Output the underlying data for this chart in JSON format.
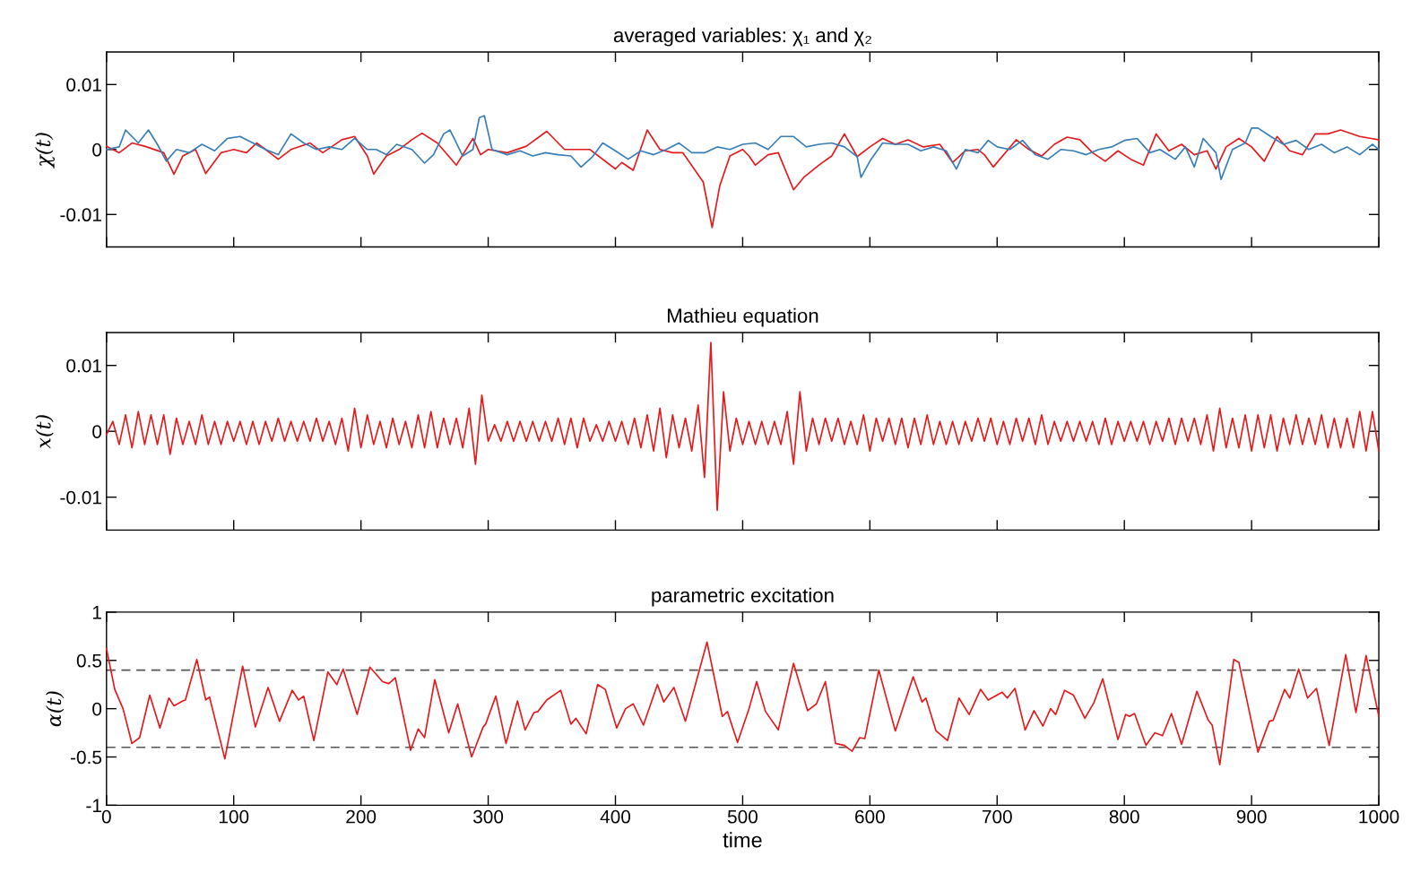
{
  "chart_data": [
    {
      "type": "line",
      "title": "averaged variables: χ₁ and χ₂",
      "ylabel": "χ(t)",
      "xlim": [
        0,
        1000
      ],
      "xticks": [
        0,
        100,
        200,
        300,
        400,
        500,
        600,
        700,
        800,
        900,
        1000
      ],
      "ylim": [
        -0.015,
        0.015
      ],
      "yticks": [
        -0.01,
        0,
        0.01
      ],
      "tick_labels": "y",
      "grid": false,
      "legend": false,
      "series": [
        {
          "color": "#e41a1c",
          "x": [
            0,
            10,
            20,
            30,
            45,
            53,
            60,
            70,
            78,
            90,
            100,
            110,
            118,
            125,
            135,
            145,
            160,
            170,
            185,
            195,
            205,
            210,
            220,
            230,
            240,
            248,
            260,
            275,
            288,
            294,
            300,
            315,
            330,
            346,
            360,
            380,
            400,
            405,
            414,
            425,
            435,
            445,
            453,
            469,
            476,
            482,
            490,
            500,
            505,
            510,
            520,
            528,
            540,
            548,
            560,
            570,
            580,
            590,
            600,
            610,
            620,
            630,
            642,
            655,
            665,
            675,
            685,
            690,
            697,
            715,
            725,
            735,
            745,
            755,
            765,
            775,
            785,
            795,
            805,
            815,
            825,
            835,
            845,
            855,
            865,
            872,
            880,
            890,
            900,
            910,
            920,
            930,
            940,
            950,
            960,
            970,
            985,
            1000
          ],
          "values": [
            0.0005,
            -0.0005,
            0.001,
            0.0005,
            -0.0005,
            -0.0038,
            -0.001,
            0.0,
            -0.0037,
            -0.0005,
            0.0,
            -0.0005,
            0.001,
            0.0,
            -0.0015,
            0.0,
            0.001,
            -0.0005,
            0.0015,
            0.002,
            -0.001,
            -0.0038,
            -0.001,
            0.0,
            0.0015,
            0.0025,
            0.001,
            -0.0024,
            0.0017,
            -0.0008,
            0.0,
            -0.0005,
            0.0005,
            0.0028,
            0.0,
            0.0,
            -0.003,
            -0.002,
            -0.0032,
            0.003,
            0.0,
            -0.0005,
            -0.0005,
            -0.005,
            -0.012,
            -0.0056,
            -0.001,
            0.0,
            -0.001,
            -0.0024,
            -0.0008,
            -0.0005,
            -0.0062,
            -0.0043,
            -0.0024,
            -0.001,
            0.0024,
            -0.0011,
            0.0004,
            0.0017,
            0.0008,
            0.0015,
            0.0004,
            0.0008,
            -0.002,
            -0.0002,
            0.0,
            -0.0008,
            -0.0027,
            0.0015,
            0.0,
            -0.001,
            0.0008,
            0.0019,
            0.0015,
            -0.0005,
            -0.0018,
            -0.0002,
            -0.0015,
            -0.0024,
            0.0024,
            -0.0002,
            0.0008,
            -0.0008,
            -0.0002,
            -0.003,
            0.0004,
            0.0017,
            0.0004,
            -0.0018,
            0.002,
            -0.0002,
            -0.0008,
            0.0024,
            0.0024,
            0.003,
            0.002,
            0.0015
          ]
        },
        {
          "color": "#377eb8",
          "x": [
            0,
            10,
            15,
            25,
            33,
            40,
            47,
            55,
            65,
            75,
            85,
            95,
            105,
            115,
            125,
            135,
            145,
            155,
            165,
            175,
            185,
            195,
            205,
            212,
            220,
            228,
            240,
            250,
            257,
            265,
            270,
            280,
            288,
            293,
            297,
            303,
            315,
            325,
            335,
            345,
            355,
            365,
            373,
            382,
            390,
            400,
            410,
            420,
            430,
            440,
            450,
            460,
            470,
            480,
            490,
            500,
            510,
            520,
            530,
            540,
            550,
            560,
            570,
            580,
            590,
            593,
            600,
            610,
            620,
            630,
            640,
            650,
            660,
            668,
            675,
            685,
            693,
            700,
            710,
            720,
            730,
            740,
            750,
            760,
            770,
            780,
            790,
            800,
            810,
            820,
            828,
            840,
            848,
            855,
            862,
            872,
            876,
            885,
            895,
            900,
            905,
            915,
            925,
            935,
            945,
            955,
            965,
            975,
            985,
            995,
            1000
          ],
          "values": [
            0.0,
            0.0004,
            0.003,
            0.001,
            0.003,
            0.0008,
            -0.0018,
            0.0,
            -0.0005,
            0.0008,
            -0.0002,
            0.0017,
            0.002,
            0.001,
            0.0,
            -0.0008,
            0.0024,
            0.001,
            0.0,
            0.0004,
            0.0,
            0.0017,
            0.0,
            0.0,
            -0.0008,
            0.0008,
            0.0,
            -0.0021,
            -0.0008,
            0.0024,
            0.003,
            -0.001,
            0.0,
            0.0049,
            0.0052,
            0.0,
            -0.0008,
            -0.0002,
            -0.001,
            -0.0005,
            -0.0008,
            -0.001,
            -0.0027,
            -0.0011,
            0.001,
            -0.0002,
            -0.0015,
            -0.0002,
            -0.0008,
            0.0,
            0.001,
            -0.0005,
            -0.0005,
            0.0004,
            0.0,
            0.0008,
            0.001,
            0.0,
            0.002,
            0.002,
            0.0004,
            0.0008,
            0.001,
            0.0004,
            -0.0011,
            -0.0043,
            -0.0018,
            0.001,
            0.0008,
            0.0008,
            -0.0002,
            0.0004,
            -0.0002,
            -0.003,
            0.0,
            -0.0005,
            0.0014,
            0.0004,
            0.0,
            0.0014,
            -0.0008,
            -0.0015,
            0.0,
            -0.0002,
            -0.0008,
            0.0,
            0.0004,
            0.0014,
            0.0017,
            -0.0005,
            0.0,
            -0.0015,
            0.0004,
            -0.0027,
            0.0017,
            -0.0005,
            -0.0046,
            0.0,
            0.001,
            0.0033,
            0.0033,
            0.002,
            0.0008,
            0.0014,
            0.0,
            0.0008,
            -0.0005,
            0.0004,
            -0.0008,
            0.0008,
            0.0
          ]
        }
      ]
    },
    {
      "type": "line",
      "title": "Mathieu equation",
      "ylabel": "x(t)",
      "xlim": [
        0,
        1000
      ],
      "xticks": [
        0,
        100,
        200,
        300,
        400,
        500,
        600,
        700,
        800,
        900,
        1000
      ],
      "ylim": [
        -0.015,
        0.015
      ],
      "yticks": [
        -0.01,
        0,
        0.01
      ],
      "tick_labels": "y",
      "grid": false,
      "legend": false,
      "series": [
        {
          "color": "#e41a1c",
          "x": [
            0,
            5,
            10,
            15,
            20,
            25,
            30,
            35,
            40,
            45,
            50,
            55,
            60,
            65,
            70,
            75,
            80,
            85,
            90,
            95,
            100,
            105,
            110,
            115,
            120,
            125,
            130,
            135,
            140,
            145,
            150,
            155,
            160,
            165,
            170,
            175,
            180,
            185,
            190,
            195,
            200,
            205,
            210,
            215,
            220,
            225,
            230,
            235,
            240,
            245,
            250,
            255,
            260,
            265,
            270,
            275,
            280,
            285,
            290,
            295,
            300,
            305,
            310,
            315,
            320,
            325,
            330,
            335,
            340,
            345,
            350,
            355,
            360,
            365,
            370,
            375,
            380,
            385,
            390,
            395,
            400,
            405,
            410,
            415,
            420,
            425,
            430,
            435,
            440,
            445,
            450,
            455,
            460,
            465,
            470,
            475,
            480,
            485,
            490,
            495,
            500,
            505,
            510,
            515,
            520,
            525,
            530,
            535,
            540,
            545,
            550,
            555,
            560,
            565,
            570,
            575,
            580,
            585,
            590,
            595,
            600,
            605,
            610,
            615,
            620,
            625,
            630,
            635,
            640,
            645,
            650,
            655,
            660,
            665,
            670,
            675,
            680,
            685,
            690,
            695,
            700,
            705,
            710,
            715,
            720,
            725,
            730,
            735,
            740,
            745,
            750,
            755,
            760,
            765,
            770,
            775,
            780,
            785,
            790,
            795,
            800,
            805,
            810,
            815,
            820,
            825,
            830,
            835,
            840,
            845,
            850,
            855,
            860,
            865,
            870,
            875,
            880,
            885,
            890,
            895,
            900,
            905,
            910,
            915,
            920,
            925,
            930,
            935,
            940,
            945,
            950,
            955,
            960,
            965,
            970,
            975,
            980,
            985,
            990,
            995,
            1000
          ],
          "values": [
            -0.0005,
            0.0015,
            -0.002,
            0.0025,
            -0.0025,
            0.003,
            -0.002,
            0.0025,
            -0.002,
            0.0025,
            -0.0035,
            0.002,
            -0.002,
            0.0015,
            -0.002,
            0.0025,
            -0.002,
            0.0015,
            -0.002,
            0.0015,
            -0.0015,
            0.0015,
            -0.002,
            0.0015,
            -0.002,
            0.0015,
            -0.0015,
            0.002,
            -0.0015,
            0.0015,
            -0.0015,
            0.0015,
            -0.0015,
            0.002,
            -0.0015,
            0.0015,
            -0.002,
            0.002,
            -0.003,
            0.0035,
            -0.0025,
            0.0025,
            -0.002,
            0.0015,
            -0.0025,
            0.002,
            -0.002,
            0.0015,
            -0.0025,
            0.0025,
            -0.0025,
            0.003,
            -0.0025,
            0.002,
            -0.002,
            0.002,
            -0.0025,
            0.0035,
            -0.005,
            0.0055,
            -0.0015,
            0.001,
            -0.0015,
            0.0015,
            -0.0015,
            0.0015,
            -0.0015,
            0.0015,
            -0.0015,
            0.0015,
            -0.0015,
            0.002,
            -0.002,
            0.002,
            -0.0025,
            0.002,
            -0.0015,
            0.001,
            -0.0015,
            0.0015,
            -0.0015,
            0.0015,
            -0.002,
            0.002,
            -0.0025,
            0.0025,
            -0.003,
            0.0035,
            -0.004,
            0.0025,
            -0.0025,
            0.002,
            -0.003,
            0.004,
            -0.007,
            0.0135,
            -0.012,
            0.006,
            -0.003,
            0.002,
            -0.002,
            0.0015,
            -0.002,
            0.0015,
            -0.002,
            0.0015,
            -0.002,
            0.003,
            -0.005,
            0.006,
            -0.003,
            0.002,
            -0.002,
            0.002,
            -0.0015,
            0.002,
            -0.002,
            0.0015,
            -0.002,
            0.0025,
            -0.003,
            0.002,
            -0.0015,
            0.002,
            -0.002,
            0.002,
            -0.0025,
            0.002,
            -0.002,
            0.0025,
            -0.002,
            0.0015,
            -0.002,
            0.0015,
            -0.002,
            0.0015,
            -0.0015,
            0.002,
            -0.0015,
            0.002,
            -0.002,
            0.0015,
            -0.002,
            0.002,
            -0.0015,
            0.002,
            -0.002,
            0.0025,
            -0.002,
            0.0015,
            -0.0015,
            0.0015,
            -0.0015,
            0.0015,
            -0.0015,
            0.0015,
            -0.002,
            0.002,
            -0.002,
            0.0015,
            -0.0015,
            0.0015,
            -0.0015,
            0.0015,
            -0.002,
            0.0015,
            -0.0015,
            0.002,
            -0.002,
            0.002,
            -0.0015,
            0.002,
            -0.002,
            0.0025,
            -0.003,
            0.0035,
            -0.0025,
            0.002,
            -0.0025,
            0.0025,
            -0.003,
            0.0025,
            -0.0025,
            0.0025,
            -0.003,
            0.002,
            -0.002,
            0.0025,
            -0.002,
            0.002,
            -0.002,
            0.0025,
            -0.0025,
            0.002,
            -0.0025,
            0.002,
            -0.0025,
            0.003,
            -0.003,
            0.003,
            -0.003
          ]
        }
      ]
    },
    {
      "type": "line",
      "title": "parametric excitation",
      "xlabel": "time",
      "ylabel": "α(t)",
      "xlim": [
        0,
        1000
      ],
      "xticks": [
        0,
        100,
        200,
        300,
        400,
        500,
        600,
        700,
        800,
        900,
        1000
      ],
      "ylim": [
        -1,
        1
      ],
      "yticks": [
        -1,
        -0.5,
        0,
        0.5,
        1
      ],
      "grid": false,
      "legend": false,
      "ref_lines": [
        {
          "axis": "y",
          "value": 0.4,
          "color": "#555555",
          "line_style": "dashed"
        },
        {
          "axis": "y",
          "value": -0.4,
          "color": "#555555",
          "line_style": "dashed"
        }
      ],
      "series": [
        {
          "color": "#e41a1c",
          "x": [
            0,
            6.5,
            13,
            20,
            26,
            34,
            42,
            49,
            53,
            60,
            62,
            71,
            78,
            81,
            93,
            107,
            117,
            127,
            136,
            146,
            151,
            155,
            163,
            174,
            181,
            186,
            197,
            207,
            217,
            222,
            227,
            239,
            245,
            250,
            258,
            269,
            276,
            287,
            296,
            298,
            306,
            314,
            323,
            329,
            336,
            339,
            346,
            357,
            365,
            369,
            377,
            386,
            392,
            401,
            408,
            414,
            422,
            433,
            438,
            446,
            455,
            472,
            484,
            488,
            496,
            505,
            511,
            518,
            528,
            540,
            551,
            558,
            565,
            573,
            580,
            586,
            592,
            596,
            607,
            620,
            634,
            641,
            644,
            652,
            661,
            670,
            678,
            687,
            693,
            697,
            704,
            708,
            714,
            722,
            729,
            736,
            742,
            746,
            753,
            760,
            769,
            776,
            783,
            795,
            801,
            804,
            808,
            817,
            824,
            830,
            837,
            845,
            857,
            866,
            869,
            875,
            886,
            890,
            905,
            914,
            917,
            926,
            930,
            937,
            944,
            951,
            961,
            974,
            982,
            990,
            1000
          ],
          "values": [
            0.62,
            0.2,
            0.0,
            -0.36,
            -0.3,
            0.14,
            -0.2,
            0.11,
            0.03,
            0.08,
            0.09,
            0.51,
            0.09,
            0.12,
            -0.52,
            0.44,
            -0.19,
            0.22,
            -0.13,
            0.19,
            0.09,
            0.13,
            -0.33,
            0.38,
            0.25,
            0.41,
            -0.06,
            0.43,
            0.28,
            0.26,
            0.32,
            -0.43,
            -0.21,
            -0.3,
            0.3,
            -0.25,
            0.05,
            -0.5,
            -0.19,
            -0.16,
            0.13,
            -0.36,
            0.08,
            -0.22,
            -0.04,
            -0.03,
            0.09,
            0.19,
            -0.16,
            -0.1,
            -0.26,
            0.25,
            0.2,
            -0.2,
            0.0,
            0.05,
            -0.17,
            0.25,
            0.07,
            0.22,
            -0.13,
            0.69,
            -0.08,
            -0.03,
            -0.35,
            0.0,
            0.28,
            -0.03,
            -0.22,
            0.47,
            -0.02,
            0.05,
            0.28,
            -0.36,
            -0.38,
            -0.44,
            -0.3,
            -0.31,
            0.4,
            -0.23,
            0.33,
            0.07,
            0.11,
            -0.23,
            -0.33,
            0.11,
            -0.06,
            0.2,
            0.09,
            0.12,
            0.17,
            0.11,
            0.21,
            -0.22,
            -0.02,
            -0.18,
            0.0,
            -0.06,
            0.19,
            0.14,
            -0.1,
            0.06,
            0.31,
            -0.32,
            -0.06,
            -0.08,
            -0.05,
            -0.38,
            -0.25,
            -0.28,
            -0.05,
            -0.37,
            0.18,
            -0.12,
            -0.17,
            -0.58,
            0.51,
            0.48,
            -0.45,
            -0.13,
            -0.12,
            0.2,
            0.11,
            0.41,
            0.11,
            0.21,
            -0.38,
            0.56,
            -0.04,
            0.55,
            -0.08
          ]
        }
      ]
    }
  ]
}
